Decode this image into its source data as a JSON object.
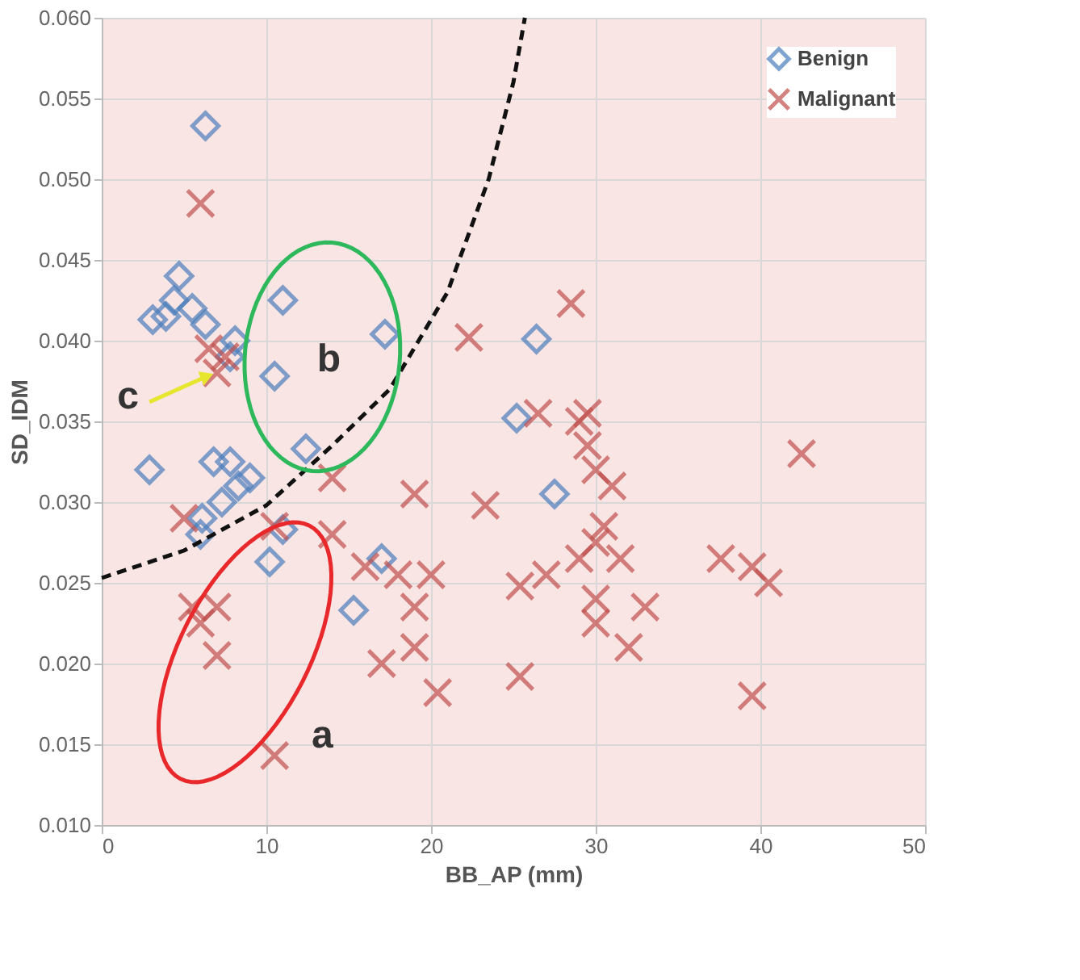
{
  "chart_data": {
    "type": "scatter",
    "xlabel": "BB_AP (mm)",
    "ylabel": "SD_IDM",
    "xlim": [
      0,
      50
    ],
    "xticks": [
      0,
      10,
      20,
      30,
      40,
      50
    ],
    "ylim": [
      0.01,
      0.06
    ],
    "yticks": [
      {
        "value": 0.01,
        "label": "0.010"
      },
      0.015,
      {
        "value": 0.02,
        "label": "0.020"
      },
      0.025,
      {
        "value": 0.03,
        "label": "0.030"
      },
      0.035,
      {
        "value": 0.04,
        "label": "0.040"
      },
      0.045,
      {
        "value": 0.05,
        "label": "0.050"
      },
      0.055,
      {
        "value": 0.06,
        "label": "0.060"
      }
    ],
    "grid": true,
    "legend": "top right",
    "series": [
      {
        "name": "Benign",
        "marker": "diamond",
        "color": "#4a7ebb",
        "x": [
          6.3,
          4.7,
          4.4,
          3.9,
          3.1,
          6.3,
          5.5,
          8.1,
          7.8,
          10.5,
          11.0,
          12.4,
          17.2,
          2.9,
          6.8,
          8.3,
          7.3,
          6.1,
          7.8,
          10.2,
          11.0,
          15.3,
          17.0,
          26.4,
          25.2,
          27.5,
          6.0,
          9.0
        ],
        "values": [
          0.0533,
          0.044,
          0.0425,
          0.0415,
          0.0413,
          0.041,
          0.042,
          0.04,
          0.039,
          0.0378,
          0.0425,
          0.0333,
          0.0404,
          0.032,
          0.0325,
          0.031,
          0.03,
          0.029,
          0.0325,
          0.0263,
          0.0283,
          0.0233,
          0.0265,
          0.0401,
          0.0352,
          0.0305,
          0.028,
          0.0315
        ]
      },
      {
        "name": "Malignant",
        "marker": "cross",
        "color": "#c0504d",
        "x": [
          6,
          6.5,
          7,
          7.5,
          5,
          10.5,
          5.5,
          6,
          7,
          7,
          10.5,
          14,
          14,
          16,
          17,
          19,
          18,
          19,
          20,
          20.4,
          19,
          22.3,
          23.3,
          25.4,
          25.4,
          26.5,
          27,
          28.5,
          29,
          29.5,
          29.5,
          30,
          31,
          30,
          29,
          30.5,
          30,
          30,
          31.5,
          33,
          32,
          37.6,
          39.5,
          40.5,
          42.5,
          39.5
        ],
        "values": [
          0.0485,
          0.0395,
          0.038,
          0.039,
          0.029,
          0.0285,
          0.0235,
          0.0225,
          0.0235,
          0.0205,
          0.0143,
          0.0315,
          0.028,
          0.026,
          0.02,
          0.0305,
          0.0255,
          0.0235,
          0.0255,
          0.0182,
          0.021,
          0.0402,
          0.0298,
          0.0248,
          0.0192,
          0.0355,
          0.0255,
          0.0423,
          0.035,
          0.0355,
          0.0335,
          0.032,
          0.031,
          0.0275,
          0.0265,
          0.0285,
          0.024,
          0.0225,
          0.0265,
          0.0235,
          0.021,
          0.0265,
          0.026,
          0.025,
          0.033,
          0.018
        ]
      },
      {
        "type": "line",
        "color": "#111111",
        "line_style": "dashed",
        "x": [
          0,
          5,
          10,
          14,
          17.5,
          21,
          23.5,
          25,
          25.7
        ],
        "values": [
          0.0253,
          0.027,
          0.0298,
          0.0335,
          0.037,
          0.043,
          0.05,
          0.056,
          0.06
        ]
      }
    ],
    "annotations": [
      "a",
      "b",
      "c"
    ]
  }
}
